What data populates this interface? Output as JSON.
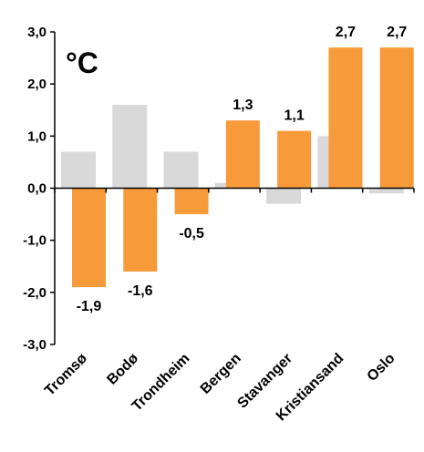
{
  "chart_data": {
    "type": "bar",
    "unit_label": "°C",
    "categories": [
      "Tromsø",
      "Bodø",
      "Trondheim",
      "Bergen",
      "Stavanger",
      "Kristiansand",
      "Oslo"
    ],
    "series": [
      {
        "values": [
          0.7,
          1.6,
          0.7,
          0.1,
          -0.3,
          1.0,
          -0.1
        ],
        "color": "#d9d9d9"
      },
      {
        "values": [
          -1.9,
          -1.6,
          -0.5,
          1.3,
          1.1,
          2.7,
          2.7
        ],
        "color": "#f79a3a"
      }
    ],
    "data_labels": [
      "-1,9",
      "-1,6",
      "-0,5",
      "1,3",
      "1,1",
      "2,7",
      "2,7"
    ],
    "yticks": [
      "3,0",
      "2,0",
      "1,0",
      "0,0",
      "-1,0",
      "-2,0",
      "-3,0"
    ],
    "ylim": [
      -3,
      3
    ],
    "grid": false
  }
}
